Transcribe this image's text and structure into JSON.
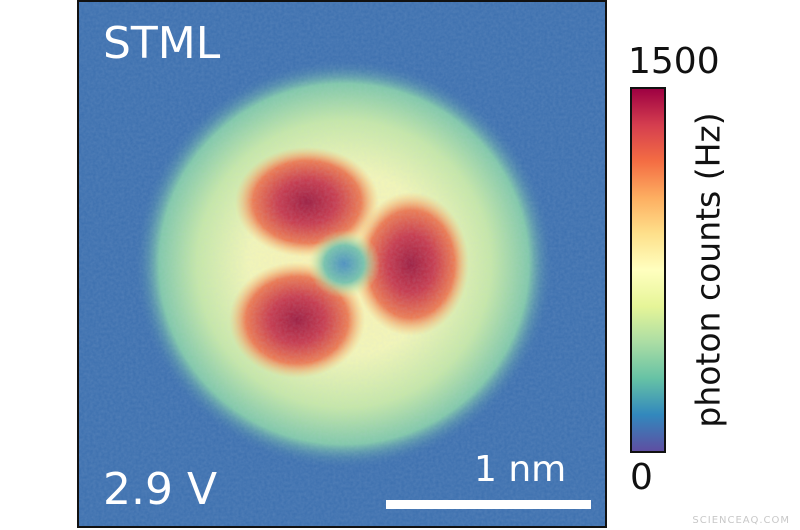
{
  "image": {
    "title_label": "STML",
    "voltage_label": "2.9 V",
    "scale_label": "1 nm",
    "colorbar": {
      "max_label": "1500",
      "min_label": "0",
      "axis_label": "photon counts (Hz)",
      "colors": [
        "#9e0142",
        "#d53e4f",
        "#f46d43",
        "#fdae61",
        "#fee08b",
        "#ffffbf",
        "#e6f598",
        "#abdda4",
        "#66c2a5",
        "#3288bd",
        "#5e4fa2"
      ]
    },
    "background_color": "#3b6fae",
    "watermark": "SCIENCEAQ.COM"
  }
}
